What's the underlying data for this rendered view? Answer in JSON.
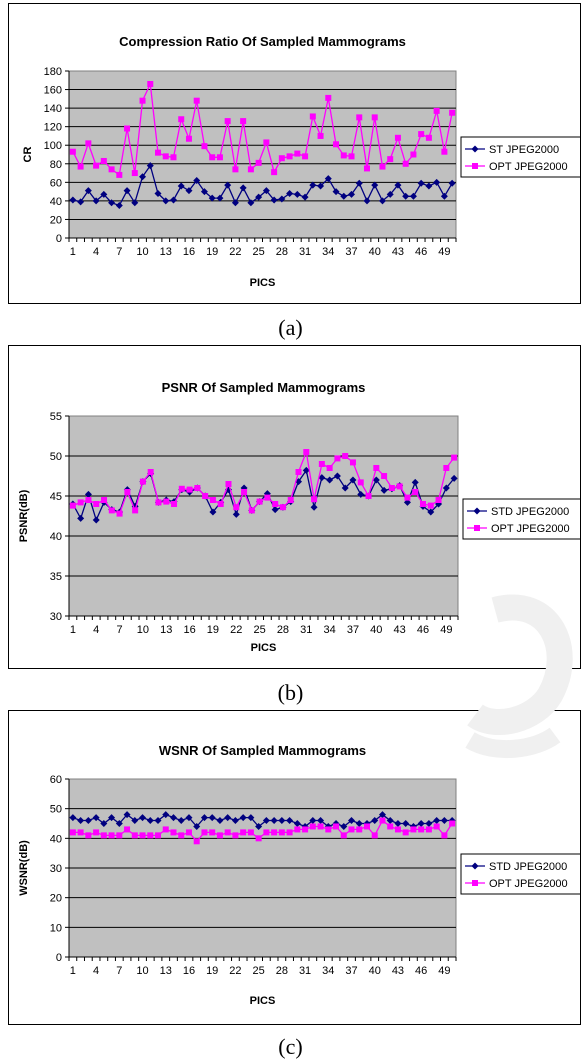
{
  "chart_data": [
    {
      "type": "line",
      "title": "Compression Ratio Of Sampled  Mammograms",
      "xlabel": "PICS",
      "ylabel": "CR",
      "ylim": [
        0,
        180
      ],
      "yticks": [
        "0",
        "20",
        "40",
        "60",
        "80",
        "100",
        "120",
        "140",
        "160",
        "180"
      ],
      "xtick_labels": [
        "1",
        "4",
        "7",
        "10",
        "13",
        "16",
        "19",
        "22",
        "25",
        "28",
        "31",
        "34",
        "37",
        "40",
        "43",
        "46",
        "49"
      ],
      "x": [
        1,
        2,
        3,
        4,
        5,
        6,
        7,
        8,
        9,
        10,
        11,
        12,
        13,
        14,
        15,
        16,
        17,
        18,
        19,
        20,
        21,
        22,
        23,
        24,
        25,
        26,
        27,
        28,
        29,
        30,
        31,
        32,
        33,
        34,
        35,
        36,
        37,
        38,
        39,
        40,
        41,
        42,
        43,
        44,
        45,
        46,
        47,
        48,
        49,
        50
      ],
      "legend": "right",
      "grid": "horizontal",
      "series": [
        {
          "name": "ST JPEG2000",
          "color": "#000080",
          "marker": "diamond",
          "values": [
            41,
            39,
            51,
            40,
            47,
            38,
            35,
            51,
            38,
            66,
            78,
            48,
            40,
            41,
            56,
            51,
            62,
            50,
            43,
            43,
            57,
            38,
            54,
            38,
            44,
            51,
            41,
            42,
            48,
            47,
            44,
            57,
            56,
            64,
            50,
            45,
            47,
            59,
            40,
            57,
            40,
            47,
            57,
            45,
            45,
            59,
            56,
            60,
            45,
            59
          ]
        },
        {
          "name": "OPT JPEG2000",
          "color": "#ff00ff",
          "marker": "square",
          "values": [
            93,
            77,
            102,
            78,
            83,
            74,
            68,
            118,
            70,
            148,
            166,
            92,
            88,
            87,
            128,
            107,
            148,
            99,
            87,
            87,
            126,
            74,
            126,
            74,
            81,
            103,
            71,
            86,
            88,
            91,
            88,
            131,
            110,
            151,
            101,
            89,
            88,
            130,
            75,
            130,
            77,
            85,
            108,
            80,
            90,
            112,
            108,
            137,
            93,
            135
          ]
        }
      ]
    },
    {
      "type": "line",
      "title": "PSNR Of Sampled Mammograms",
      "xlabel": "PICS",
      "ylabel": "PSNR(dB)",
      "ylim": [
        30,
        55
      ],
      "yticks": [
        "30",
        "35",
        "40",
        "45",
        "50",
        "55"
      ],
      "xtick_labels": [
        "1",
        "4",
        "7",
        "10",
        "13",
        "16",
        "19",
        "22",
        "25",
        "28",
        "31",
        "34",
        "37",
        "40",
        "43",
        "46",
        "49"
      ],
      "x": [
        1,
        2,
        3,
        4,
        5,
        6,
        7,
        8,
        9,
        10,
        11,
        12,
        13,
        14,
        15,
        16,
        17,
        18,
        19,
        20,
        21,
        22,
        23,
        24,
        25,
        26,
        27,
        28,
        29,
        30,
        31,
        32,
        33,
        34,
        35,
        36,
        37,
        38,
        39,
        40,
        41,
        42,
        43,
        44,
        45,
        46,
        47,
        48,
        49,
        50
      ],
      "legend": "right",
      "grid": "horizontal",
      "series": [
        {
          "name": "STD JPEG2000",
          "color": "#000080",
          "marker": "diamond",
          "values": [
            44,
            42.2,
            45.2,
            42,
            44.2,
            43.3,
            43,
            45.8,
            43.7,
            46.8,
            47.8,
            44.2,
            44.5,
            44.3,
            45.8,
            45.5,
            46,
            45,
            43,
            44.2,
            45.8,
            42.7,
            46,
            43.2,
            44.3,
            45.3,
            43.3,
            43.6,
            44.3,
            46.8,
            48.2,
            43.6,
            47.3,
            47,
            47.5,
            46,
            47,
            45.2,
            45,
            47,
            45.7,
            45.9,
            46.3,
            44.2,
            46.7,
            43.7,
            43,
            44,
            46,
            47.2
          ]
        },
        {
          "name": "OPT JPEG2000",
          "color": "#ff00ff",
          "marker": "square",
          "values": [
            43.8,
            44.2,
            44.5,
            44,
            44.5,
            43.2,
            42.8,
            45.5,
            43.2,
            46.8,
            48,
            44.2,
            44.3,
            44,
            45.9,
            45.8,
            46,
            45,
            44.5,
            44,
            46.5,
            43.6,
            45.5,
            43.2,
            44.3,
            44.8,
            44,
            43.6,
            44.5,
            48,
            50.5,
            44.6,
            49,
            48.5,
            49.7,
            50,
            49.2,
            46.7,
            45,
            48.5,
            47.5,
            46,
            46.2,
            44.8,
            45.5,
            44,
            43.8,
            44.5,
            48.5,
            49.8
          ]
        }
      ]
    },
    {
      "type": "line",
      "title": "WSNR Of Sampled Mammograms",
      "xlabel": "PICS",
      "ylabel": "WSNR(dB)",
      "ylim": [
        0,
        60
      ],
      "yticks": [
        "0",
        "10",
        "20",
        "30",
        "40",
        "50",
        "60"
      ],
      "xtick_labels": [
        "1",
        "4",
        "7",
        "10",
        "13",
        "16",
        "19",
        "22",
        "25",
        "28",
        "31",
        "34",
        "37",
        "40",
        "43",
        "46",
        "49"
      ],
      "x": [
        1,
        2,
        3,
        4,
        5,
        6,
        7,
        8,
        9,
        10,
        11,
        12,
        13,
        14,
        15,
        16,
        17,
        18,
        19,
        20,
        21,
        22,
        23,
        24,
        25,
        26,
        27,
        28,
        29,
        30,
        31,
        32,
        33,
        34,
        35,
        36,
        37,
        38,
        39,
        40,
        41,
        42,
        43,
        44,
        45,
        46,
        47,
        48,
        49,
        50
      ],
      "legend": "right",
      "grid": "horizontal",
      "series": [
        {
          "name": "STD JPEG2000",
          "color": "#000080",
          "marker": "diamond",
          "values": [
            47,
            46,
            46,
            47,
            45,
            47,
            45,
            48,
            46,
            47,
            46,
            46,
            48,
            47,
            46,
            47,
            44,
            47,
            47,
            46,
            47,
            46,
            47,
            47,
            44,
            46,
            46,
            46,
            46,
            45,
            44,
            46,
            46,
            44,
            45,
            44,
            46,
            45,
            45,
            46,
            48,
            46,
            45,
            45,
            44,
            45,
            45,
            46,
            46,
            46
          ]
        },
        {
          "name": "OPT JPEG2000",
          "color": "#ff00ff",
          "marker": "square",
          "values": [
            42,
            42,
            41,
            42,
            41,
            41,
            41,
            43,
            41,
            41,
            41,
            41,
            43,
            42,
            41,
            42,
            39,
            42,
            42,
            41,
            42,
            41,
            42,
            42,
            40,
            42,
            42,
            42,
            42,
            43,
            43,
            44,
            44,
            43,
            44,
            41,
            43,
            43,
            44,
            41,
            46,
            44,
            43,
            42,
            43,
            43,
            43,
            44,
            41,
            45
          ]
        }
      ]
    }
  ],
  "captions": [
    "(a)",
    "(b)",
    "(c)"
  ]
}
